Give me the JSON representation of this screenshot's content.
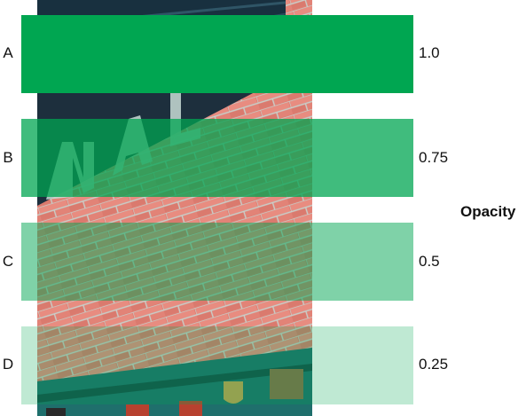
{
  "accent_color": "#00a651",
  "axis_title": "Opacity",
  "background_image": "brick-wall-photo",
  "rows": [
    {
      "label": "A",
      "value": "1.0",
      "opacity": 1.0
    },
    {
      "label": "B",
      "value": "0.75",
      "opacity": 0.75
    },
    {
      "label": "C",
      "value": "0.5",
      "opacity": 0.5
    },
    {
      "label": "D",
      "value": "0.25",
      "opacity": 0.25
    }
  ]
}
